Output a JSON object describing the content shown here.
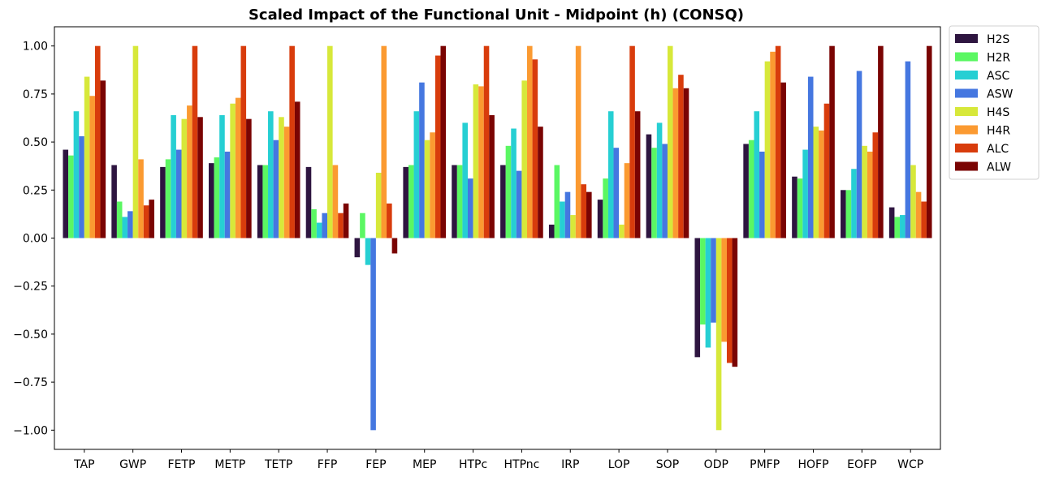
{
  "chart_data": {
    "type": "bar",
    "title": "Scaled Impact of the Functional Unit - Midpoint (h) (CONSQ)",
    "xlabel": "",
    "ylabel": "",
    "ylim": [
      -1.1,
      1.1
    ],
    "yticks": [
      "1.00",
      "0.75",
      "0.50",
      "0.25",
      "0.00",
      "−0.25",
      "−0.50",
      "−0.75",
      "−1.00"
    ],
    "ytick_values": [
      1.0,
      0.75,
      0.5,
      0.25,
      0.0,
      -0.25,
      -0.5,
      -0.75,
      -1.0
    ],
    "grid": false,
    "legend_position": "outside-top-right",
    "categories": [
      "TAP",
      "GWP",
      "FETP",
      "METP",
      "TETP",
      "FFP",
      "FEP",
      "MEP",
      "HTPc",
      "HTPnc",
      "IRP",
      "LOP",
      "SOP",
      "ODP",
      "PMFP",
      "HOFP",
      "EOFP",
      "WCP"
    ],
    "series": [
      {
        "name": "H2S",
        "color": "#2e1540",
        "values": [
          0.46,
          0.38,
          0.37,
          0.39,
          0.38,
          0.37,
          -0.1,
          0.37,
          0.38,
          0.38,
          0.07,
          0.2,
          0.54,
          -0.62,
          0.49,
          0.32,
          0.25,
          0.16
        ]
      },
      {
        "name": "H2R",
        "color": "#5bf763",
        "values": [
          0.43,
          0.19,
          0.41,
          0.42,
          0.38,
          0.15,
          0.13,
          0.38,
          0.38,
          0.48,
          0.38,
          0.31,
          0.47,
          -0.45,
          0.51,
          0.31,
          0.25,
          0.11
        ]
      },
      {
        "name": "ASC",
        "color": "#26cfd3",
        "values": [
          0.66,
          0.11,
          0.64,
          0.64,
          0.66,
          0.08,
          -0.14,
          0.66,
          0.6,
          0.57,
          0.19,
          0.66,
          0.6,
          -0.57,
          0.66,
          0.46,
          0.36,
          0.12
        ]
      },
      {
        "name": "ASW",
        "color": "#4577e0",
        "values": [
          0.53,
          0.14,
          0.46,
          0.45,
          0.51,
          0.13,
          -1.0,
          0.81,
          0.31,
          0.35,
          0.24,
          0.47,
          0.49,
          -0.44,
          0.45,
          0.84,
          0.87,
          0.92
        ]
      },
      {
        "name": "H4S",
        "color": "#d7e83a",
        "values": [
          0.84,
          1.0,
          0.62,
          0.7,
          0.63,
          1.0,
          0.34,
          0.51,
          0.8,
          0.82,
          0.12,
          0.07,
          1.0,
          -1.0,
          0.92,
          0.58,
          0.48,
          0.38
        ]
      },
      {
        "name": "H4R",
        "color": "#fb9a31",
        "values": [
          0.74,
          0.41,
          0.69,
          0.73,
          0.58,
          0.38,
          1.0,
          0.55,
          0.79,
          1.0,
          1.0,
          0.39,
          0.78,
          -0.54,
          0.97,
          0.56,
          0.45,
          0.24
        ]
      },
      {
        "name": "ALC",
        "color": "#d83c0c",
        "values": [
          1.0,
          0.17,
          1.0,
          1.0,
          1.0,
          0.13,
          0.18,
          0.95,
          1.0,
          0.93,
          0.28,
          1.0,
          0.85,
          -0.65,
          1.0,
          0.7,
          0.55,
          0.19
        ]
      },
      {
        "name": "ALW",
        "color": "#7a0403",
        "values": [
          0.82,
          0.2,
          0.63,
          0.62,
          0.71,
          0.18,
          -0.08,
          1.0,
          0.64,
          0.58,
          0.24,
          0.66,
          0.78,
          -0.67,
          0.81,
          1.0,
          1.0,
          1.0
        ]
      }
    ]
  }
}
